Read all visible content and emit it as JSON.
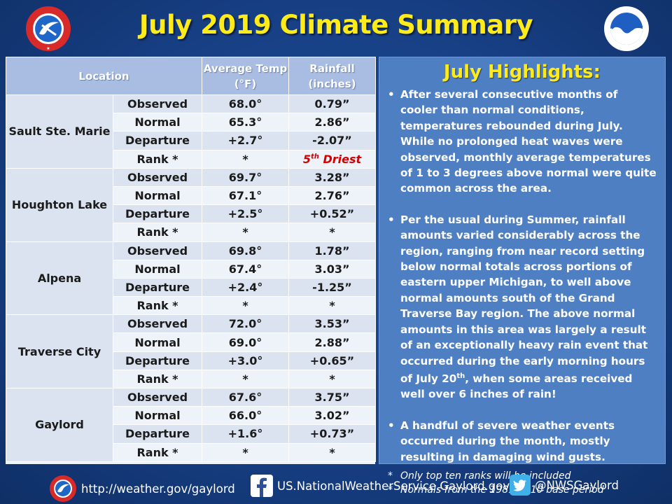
{
  "title": "July 2019 Climate Summary",
  "logos": {
    "left": "nws-logo",
    "right": "noaa-logo"
  },
  "table": {
    "headers": {
      "location": "Location",
      "avg_temp": "Average Temp (°F)",
      "rainfall": "Rainfall (inches)"
    },
    "sites": [
      {
        "name": "Sault Ste. Marie",
        "rows": [
          {
            "label": "Observed",
            "temp": "68.0°",
            "rain": "0.79”"
          },
          {
            "label": "Normal",
            "temp": "65.3°",
            "rain": "2.86”"
          },
          {
            "label": "Departure",
            "temp": "+2.7°",
            "rain": "-2.07”"
          },
          {
            "label": "Rank *",
            "temp": "*",
            "rain": "5th Driest"
          }
        ]
      },
      {
        "name": "Houghton Lake",
        "rows": [
          {
            "label": "Observed",
            "temp": "69.7°",
            "rain": "3.28”"
          },
          {
            "label": "Normal",
            "temp": "67.1°",
            "rain": "2.76”"
          },
          {
            "label": "Departure",
            "temp": "+2.5°",
            "rain": "+0.52”"
          },
          {
            "label": "Rank *",
            "temp": "*",
            "rain": "*"
          }
        ]
      },
      {
        "name": "Alpena",
        "rows": [
          {
            "label": "Observed",
            "temp": "69.8°",
            "rain": "1.78”"
          },
          {
            "label": "Normal",
            "temp": "67.4°",
            "rain": "3.03”"
          },
          {
            "label": "Departure",
            "temp": "+2.4°",
            "rain": "-1.25”"
          },
          {
            "label": "Rank *",
            "temp": "*",
            "rain": "*"
          }
        ]
      },
      {
        "name": "Traverse City",
        "rows": [
          {
            "label": "Observed",
            "temp": "72.0°",
            "rain": "3.53”"
          },
          {
            "label": "Normal",
            "temp": "69.0°",
            "rain": "2.88”"
          },
          {
            "label": "Departure",
            "temp": "+3.0°",
            "rain": "+0.65”"
          },
          {
            "label": "Rank *",
            "temp": "*",
            "rain": "*"
          }
        ]
      },
      {
        "name": "Gaylord",
        "rows": [
          {
            "label": "Observed",
            "temp": "67.6°",
            "rain": "3.75”"
          },
          {
            "label": "Normal",
            "temp": "66.0°",
            "rain": "3.02”"
          },
          {
            "label": "Departure",
            "temp": "+1.6°",
            "rain": "+0.73”"
          },
          {
            "label": "Rank *",
            "temp": "*",
            "rain": "*"
          }
        ]
      }
    ]
  },
  "highlights": {
    "title": "July Highlights:",
    "bullets": [
      "After several consecutive months of cooler than normal conditions, temperatures rebounded during July.  While no prolonged heat waves were observed, monthly average temperatures of 1 to 3 degrees above normal were quite common across the area.",
      "Per the usual during Summer, rainfall amounts varied considerably across the region, ranging from near record setting below normal totals across portions of eastern upper Michigan, to well above normal amounts south of the Grand Traverse Bay region.  The above normal amounts in this area was largely a result of an exceptionally heavy rain event that occurred during the early morning hours of July 20th, when some areas received well over 6 inches of rain!",
      "A handful of severe weather events occurred during the month, mostly resulting in damaging wind gusts."
    ],
    "notes": [
      "Only top ten ranks will be included",
      "Normals from the 1981-2010 base period"
    ]
  },
  "footer": {
    "website": "http://weather.gov/gaylord",
    "facebook": "US.NationalWeatherService.Gaylord.gov",
    "twitter": "@NWSGaylord"
  },
  "colors": {
    "title": "#ffeb1a",
    "background": "#173f84",
    "panel": "#4f7fc3",
    "table_header": "#a9bde3",
    "rank_highlight": "#d40000"
  }
}
